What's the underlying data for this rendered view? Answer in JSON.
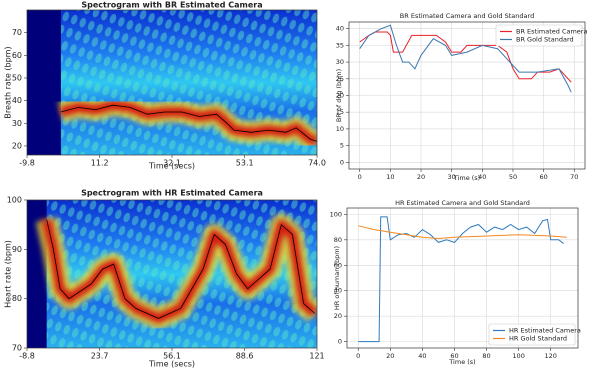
{
  "chart_data": [
    {
      "type": "spectrogram",
      "title": "Spectrogram with BR Estimated Camera",
      "xlabel": "Time (secs)",
      "ylabel": "Breath rate (bpm)",
      "x": [
        0,
        5,
        10,
        15,
        20,
        25,
        30,
        35,
        40,
        45,
        48,
        50,
        55,
        60,
        65,
        68,
        72,
        74
      ],
      "values": [
        35,
        37,
        36,
        38,
        37,
        34,
        35,
        35,
        33,
        34,
        30,
        27,
        26,
        27,
        26,
        28,
        23,
        22
      ],
      "color": "#000000",
      "xlim": [
        -9.8,
        74
      ],
      "xticks": [
        -9.8,
        11.2,
        32.1,
        53.1,
        {
          "value": 74,
          "label": "74.0"
        }
      ],
      "ylim": [
        16,
        80
      ],
      "yticks": [
        20,
        30,
        40,
        50,
        60,
        70
      ]
    },
    {
      "type": "line",
      "title": "BR Estimated Camera and Gold Standard",
      "xlabel": "Time (s)",
      "ylabel": "BR of dog (bpm)",
      "series": [
        {
          "name": "BR Estimated Camera",
          "color": "#e8202a",
          "x": [
            0,
            3,
            5,
            9,
            10,
            11,
            14,
            17,
            20,
            25,
            28,
            30,
            33,
            35,
            40,
            45,
            48,
            50,
            52,
            56,
            58,
            62,
            65,
            68,
            69
          ],
          "values": [
            36,
            38,
            39,
            39,
            38,
            33,
            33,
            38,
            38,
            38,
            36,
            33,
            33,
            35,
            35,
            35,
            33,
            28,
            25,
            25,
            27,
            27,
            28,
            25,
            24
          ]
        },
        {
          "name": "BR Gold Standard",
          "color": "#3b78b0",
          "x": [
            0,
            3,
            7,
            10,
            12,
            14,
            16,
            18,
            20,
            24,
            28,
            30,
            35,
            40,
            45,
            49,
            52,
            55,
            58,
            65,
            68,
            69
          ],
          "values": [
            34,
            38,
            40,
            41,
            35,
            30,
            30,
            28,
            32,
            37,
            35,
            32,
            33,
            35,
            34,
            30,
            27,
            27,
            27,
            28,
            23,
            21
          ]
        }
      ],
      "xlim": [
        -3.5,
        73.5
      ],
      "xticks": [
        0,
        10,
        20,
        30,
        40,
        50,
        60,
        70
      ],
      "ylim": [
        -2,
        42
      ],
      "yticks": [
        0,
        5,
        10,
        15,
        20,
        25,
        30,
        35,
        40
      ],
      "grid": true,
      "legend": "upper right"
    },
    {
      "type": "spectrogram",
      "title": "Spectrogram with HR Estimated Camera",
      "xlabel": "Time (secs)",
      "ylabel": "Heart rate (bpm)",
      "x": [
        0,
        3,
        6,
        10,
        20,
        25,
        30,
        35,
        40,
        50,
        60,
        70,
        75,
        80,
        85,
        90,
        100,
        105,
        110,
        115,
        120
      ],
      "values": [
        96,
        90,
        82,
        80,
        83,
        86,
        87,
        80,
        78,
        76,
        78,
        86,
        93,
        91,
        85,
        82,
        86,
        95,
        93,
        79,
        77
      ],
      "color": "#000000",
      "xlim": [
        -8.8,
        121
      ],
      "xticks": [
        -8.8,
        23.7,
        56.1,
        88.6,
        121
      ],
      "ylim": [
        70,
        100
      ],
      "yticks": [
        70,
        80,
        90,
        100
      ]
    },
    {
      "type": "line",
      "title": "HR Estimated Camera and Gold Standard",
      "xlabel": "Time (s)",
      "ylabel": "HR of human (bpm)",
      "series": [
        {
          "name": "HR Estimated Camera",
          "color": "#2f7bbd",
          "x": [
            0,
            13,
            14,
            18,
            20,
            25,
            30,
            35,
            40,
            45,
            50,
            55,
            60,
            65,
            70,
            75,
            80,
            85,
            90,
            95,
            100,
            105,
            110,
            115,
            118,
            120,
            125,
            128
          ],
          "values": [
            0,
            0,
            98,
            98,
            80,
            84,
            85,
            82,
            88,
            84,
            78,
            80,
            78,
            85,
            90,
            92,
            86,
            90,
            88,
            92,
            88,
            90,
            85,
            95,
            96,
            80,
            80,
            77
          ]
        },
        {
          "name": "HR Gold Standard",
          "color": "#f5891f",
          "x": [
            0,
            10,
            20,
            30,
            40,
            50,
            60,
            80,
            100,
            120,
            130
          ],
          "values": [
            91,
            88,
            86,
            84,
            82,
            81,
            82,
            83,
            84,
            83,
            82
          ]
        }
      ],
      "xlim": [
        -7,
        137
      ],
      "xticks": [
        0,
        20,
        40,
        60,
        80,
        100,
        120
      ],
      "ylim": [
        -5,
        105
      ],
      "yticks": [
        0,
        20,
        40,
        60,
        80,
        100
      ],
      "grid": true,
      "legend": "lower right"
    }
  ]
}
